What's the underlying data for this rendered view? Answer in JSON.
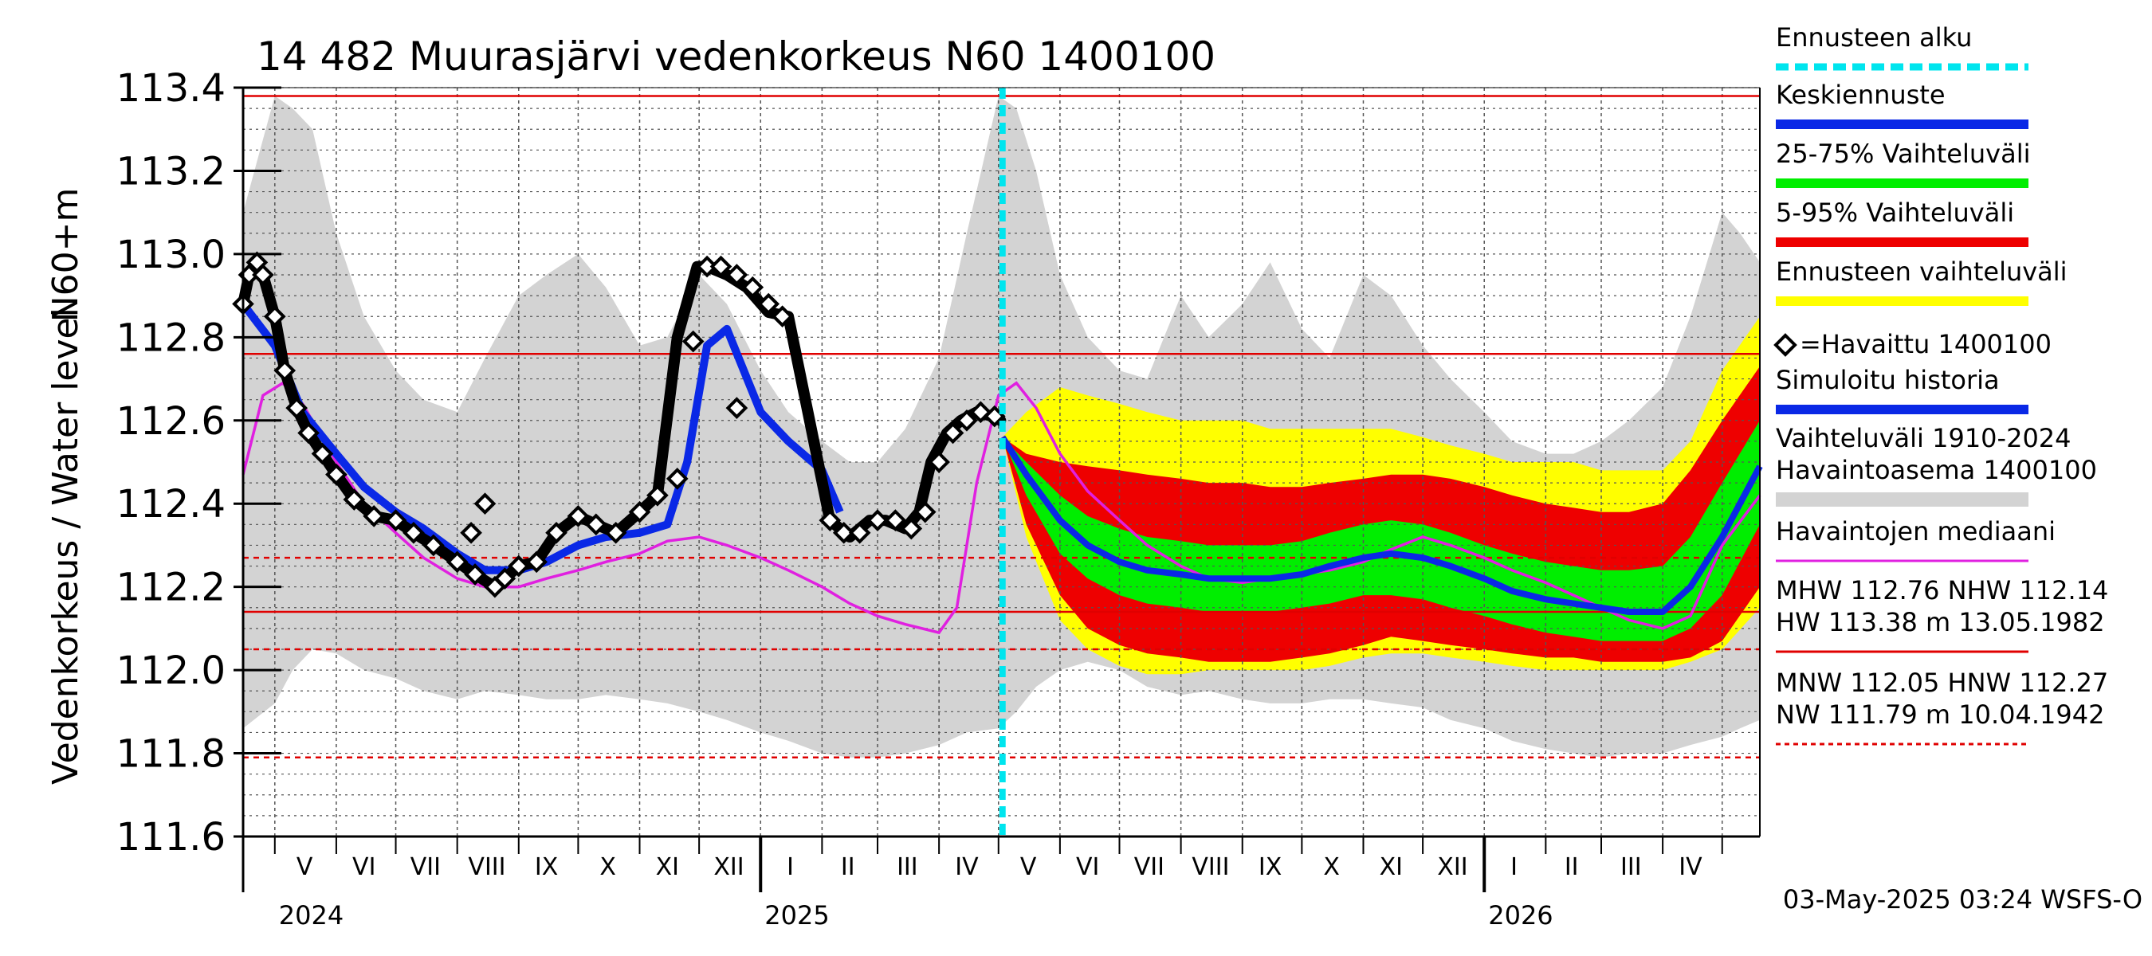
{
  "chart_data": {
    "type": "line",
    "title": "14 482 Muurasjärvi vedenkorkeus N60 1400100",
    "ylabel_top": "N60+m",
    "ylabel_main": "Vedenkorkeus / Water level",
    "ylim": [
      111.6,
      113.4
    ],
    "yticks": [
      "111.6",
      "111.8",
      "112.0",
      "112.2",
      "112.4",
      "112.6",
      "112.8",
      "113.0",
      "113.2",
      "113.4"
    ],
    "x_start": "2024-04-15",
    "x_end": "2026-05-20",
    "forecast_start": "2025-05-03",
    "months": [
      {
        "label": "V",
        "date": "2024-05-16"
      },
      {
        "label": "VI",
        "date": "2024-06-15"
      },
      {
        "label": "VII",
        "date": "2024-07-16"
      },
      {
        "label": "VIII",
        "date": "2024-08-16"
      },
      {
        "label": "IX",
        "date": "2024-09-15"
      },
      {
        "label": "X",
        "date": "2024-10-16"
      },
      {
        "label": "XI",
        "date": "2024-11-15"
      },
      {
        "label": "XII",
        "date": "2024-12-16"
      },
      {
        "label": "I",
        "date": "2025-01-16"
      },
      {
        "label": "II",
        "date": "2025-02-14"
      },
      {
        "label": "III",
        "date": "2025-03-16"
      },
      {
        "label": "IV",
        "date": "2025-04-15"
      },
      {
        "label": "V",
        "date": "2025-05-16"
      },
      {
        "label": "VI",
        "date": "2025-06-15"
      },
      {
        "label": "VII",
        "date": "2025-07-16"
      },
      {
        "label": "VIII",
        "date": "2025-08-16"
      },
      {
        "label": "IX",
        "date": "2025-09-15"
      },
      {
        "label": "X",
        "date": "2025-10-16"
      },
      {
        "label": "XI",
        "date": "2025-11-15"
      },
      {
        "label": "XII",
        "date": "2025-12-16"
      },
      {
        "label": "I",
        "date": "2026-01-16"
      },
      {
        "label": "II",
        "date": "2026-02-14"
      },
      {
        "label": "III",
        "date": "2026-03-16"
      },
      {
        "label": "IV",
        "date": "2026-04-15"
      }
    ],
    "years": [
      {
        "label": "2024",
        "date": "2024-05-01"
      },
      {
        "label": "2025",
        "date": "2025-01-01"
      },
      {
        "label": "2026",
        "date": "2026-01-01"
      }
    ],
    "reference_lines": [
      {
        "name": "HW",
        "value": 113.38,
        "style": "solid"
      },
      {
        "name": "MHW",
        "value": 112.76,
        "style": "solid"
      },
      {
        "name": "HNW",
        "value": 112.27,
        "style": "dashed"
      },
      {
        "name": "NHW",
        "value": 112.14,
        "style": "solid"
      },
      {
        "name": "MNW",
        "value": 112.05,
        "style": "dashed"
      },
      {
        "name": "NW",
        "value": 111.79,
        "style": "dashed"
      }
    ],
    "historical_range": {
      "x": [
        "2024-04-15",
        "2024-05-01",
        "2024-05-10",
        "2024-05-20",
        "2024-06-01",
        "2024-06-15",
        "2024-07-01",
        "2024-07-15",
        "2024-08-01",
        "2024-08-15",
        "2024-09-01",
        "2024-09-15",
        "2024-10-01",
        "2024-10-15",
        "2024-11-01",
        "2024-11-15",
        "2024-12-01",
        "2024-12-15",
        "2025-01-01",
        "2025-01-15",
        "2025-02-01",
        "2025-02-15",
        "2025-03-01",
        "2025-03-15",
        "2025-04-01",
        "2025-04-15",
        "2025-05-01",
        "2025-05-10",
        "2025-05-20",
        "2025-06-01",
        "2025-06-15",
        "2025-07-01",
        "2025-07-15",
        "2025-08-01",
        "2025-08-15",
        "2025-09-01",
        "2025-09-15",
        "2025-10-01",
        "2025-10-15",
        "2025-11-01",
        "2025-11-15",
        "2025-12-01",
        "2025-12-15",
        "2026-01-01",
        "2026-01-15",
        "2026-02-01",
        "2026-02-15",
        "2026-03-01",
        "2026-03-15",
        "2026-04-01",
        "2026-04-15",
        "2026-05-01",
        "2026-05-10",
        "2026-05-20"
      ],
      "upper": [
        113.1,
        113.38,
        113.35,
        113.3,
        113.05,
        112.85,
        112.72,
        112.65,
        112.62,
        112.75,
        112.9,
        112.95,
        113.0,
        112.92,
        112.78,
        112.8,
        112.95,
        112.88,
        112.72,
        112.62,
        112.55,
        112.5,
        112.5,
        112.58,
        112.75,
        113.05,
        113.38,
        113.35,
        113.2,
        112.95,
        112.8,
        112.72,
        112.7,
        112.9,
        112.8,
        112.88,
        112.98,
        112.82,
        112.75,
        112.95,
        112.9,
        112.78,
        112.7,
        112.62,
        112.55,
        112.52,
        112.52,
        112.55,
        112.6,
        112.68,
        112.85,
        113.1,
        113.05,
        112.98
      ],
      "lower": [
        111.86,
        111.92,
        112.0,
        112.05,
        112.04,
        112.0,
        111.98,
        111.95,
        111.93,
        111.95,
        111.94,
        111.93,
        111.93,
        111.94,
        111.93,
        111.92,
        111.9,
        111.88,
        111.85,
        111.83,
        111.8,
        111.79,
        111.79,
        111.8,
        111.82,
        111.85,
        111.86,
        111.9,
        111.96,
        112.0,
        112.02,
        112.0,
        111.96,
        111.94,
        111.95,
        111.93,
        111.92,
        111.92,
        111.93,
        111.93,
        111.92,
        111.91,
        111.88,
        111.86,
        111.83,
        111.81,
        111.8,
        111.79,
        111.8,
        111.8,
        111.82,
        111.84,
        111.86,
        111.88
      ]
    },
    "observed": {
      "x": [
        "2024-04-15",
        "2024-04-18",
        "2024-04-22",
        "2024-04-25",
        "2024-05-01",
        "2024-05-06",
        "2024-05-12",
        "2024-05-18",
        "2024-05-25",
        "2024-06-01",
        "2024-06-10",
        "2024-06-20",
        "2024-07-01",
        "2024-07-10",
        "2024-07-20",
        "2024-08-01",
        "2024-08-10",
        "2024-08-20",
        "2024-09-01",
        "2024-09-10",
        "2024-09-20",
        "2024-10-01",
        "2024-10-10",
        "2024-10-20",
        "2024-11-01",
        "2024-11-10",
        "2024-11-20",
        "2024-11-30",
        "2024-12-05",
        "2024-12-15",
        "2024-12-25",
        "2025-01-05",
        "2025-01-15",
        "2025-02-05",
        "2025-02-15",
        "2025-02-25",
        "2025-03-05",
        "2025-03-15",
        "2025-03-22",
        "2025-03-28",
        "2025-04-05",
        "2025-04-12",
        "2025-04-20",
        "2025-04-28",
        "2025-05-02"
      ],
      "y": [
        112.88,
        112.95,
        112.98,
        112.95,
        112.85,
        112.72,
        112.63,
        112.57,
        112.52,
        112.47,
        112.41,
        112.37,
        112.36,
        112.33,
        112.3,
        112.26,
        112.23,
        112.2,
        112.25,
        112.26,
        112.33,
        112.37,
        112.35,
        112.33,
        112.38,
        112.42,
        112.8,
        112.97,
        112.97,
        112.95,
        112.92,
        112.86,
        112.85,
        112.36,
        112.32,
        112.36,
        112.36,
        112.34,
        112.38,
        112.5,
        112.57,
        112.6,
        112.62,
        112.61,
        112.6
      ],
      "markers_x": [
        "2024-04-15",
        "2024-04-18",
        "2024-04-22",
        "2024-04-25",
        "2024-05-01",
        "2024-05-06",
        "2024-05-12",
        "2024-05-18",
        "2024-05-25",
        "2024-06-01",
        "2024-06-10",
        "2024-06-20",
        "2024-07-01",
        "2024-07-10",
        "2024-07-20",
        "2024-08-01",
        "2024-08-10",
        "2024-08-20",
        "2024-09-01",
        "2024-09-10",
        "2024-09-20",
        "2024-10-01",
        "2024-10-10",
        "2024-10-20",
        "2024-11-01",
        "2024-11-10",
        "2024-11-20",
        "2024-11-28",
        "2024-12-05",
        "2024-12-12",
        "2024-12-20",
        "2024-12-28",
        "2025-01-05",
        "2025-01-12",
        "2025-02-05",
        "2025-02-12",
        "2025-02-20",
        "2025-03-01",
        "2025-03-10",
        "2025-03-18",
        "2025-03-25",
        "2025-04-01",
        "2025-04-08",
        "2025-04-15",
        "2025-04-22",
        "2025-04-29",
        "2024-08-08",
        "2024-08-15",
        "2024-08-25",
        "2024-12-20"
      ],
      "markers_y": [
        112.88,
        112.95,
        112.98,
        112.95,
        112.85,
        112.72,
        112.63,
        112.57,
        112.52,
        112.47,
        112.41,
        112.37,
        112.36,
        112.33,
        112.3,
        112.26,
        112.23,
        112.2,
        112.25,
        112.26,
        112.33,
        112.37,
        112.35,
        112.33,
        112.38,
        112.42,
        112.46,
        112.79,
        112.97,
        112.97,
        112.95,
        112.92,
        112.88,
        112.85,
        112.36,
        112.33,
        112.33,
        112.36,
        112.36,
        112.34,
        112.38,
        112.5,
        112.57,
        112.6,
        112.62,
        112.61,
        112.33,
        112.4,
        112.22,
        112.63
      ]
    },
    "simulated_history": {
      "x": [
        "2024-04-15",
        "2024-05-01",
        "2024-05-15",
        "2024-06-01",
        "2024-06-15",
        "2024-07-01",
        "2024-07-15",
        "2024-08-01",
        "2024-08-15",
        "2024-09-01",
        "2024-09-15",
        "2024-10-01",
        "2024-10-15",
        "2024-11-01",
        "2024-11-15",
        "2024-11-25",
        "2024-12-05",
        "2024-12-15",
        "2025-01-01",
        "2025-01-15",
        "2025-02-01",
        "2025-02-10"
      ],
      "y": [
        112.88,
        112.78,
        112.62,
        112.52,
        112.44,
        112.38,
        112.34,
        112.28,
        112.24,
        112.24,
        112.26,
        112.3,
        112.32,
        112.33,
        112.35,
        112.5,
        112.78,
        112.82,
        112.62,
        112.55,
        112.48,
        112.38
      ]
    },
    "median": {
      "x": [
        "2024-04-15",
        "2024-04-25",
        "2024-05-05",
        "2024-05-15",
        "2024-06-01",
        "2024-06-15",
        "2024-07-01",
        "2024-07-15",
        "2024-08-01",
        "2024-08-15",
        "2024-09-01",
        "2024-09-15",
        "2024-10-01",
        "2024-10-15",
        "2024-11-01",
        "2024-11-15",
        "2024-12-01",
        "2024-12-15",
        "2025-01-01",
        "2025-01-15",
        "2025-02-01",
        "2025-02-15",
        "2025-03-01",
        "2025-03-15",
        "2025-04-01",
        "2025-04-10",
        "2025-04-20",
        "2025-05-01",
        "2025-05-10",
        "2025-05-20",
        "2025-06-01",
        "2025-06-15",
        "2025-07-01",
        "2025-07-15",
        "2025-08-01",
        "2025-08-15",
        "2025-09-01",
        "2025-09-15",
        "2025-10-01",
        "2025-10-15",
        "2025-11-01",
        "2025-11-15",
        "2025-12-01",
        "2025-12-15",
        "2026-01-01",
        "2026-01-15",
        "2026-02-01",
        "2026-02-15",
        "2026-03-01",
        "2026-03-15",
        "2026-04-01",
        "2026-04-15",
        "2026-05-01",
        "2026-05-20"
      ],
      "y": [
        112.47,
        112.66,
        112.69,
        112.64,
        112.5,
        112.4,
        112.33,
        112.27,
        112.22,
        112.2,
        112.2,
        112.22,
        112.24,
        112.26,
        112.28,
        112.31,
        112.32,
        112.3,
        112.27,
        112.24,
        112.2,
        112.16,
        112.13,
        112.11,
        112.09,
        112.15,
        112.45,
        112.66,
        112.69,
        112.63,
        112.52,
        112.43,
        112.36,
        112.3,
        112.25,
        112.22,
        112.21,
        112.22,
        112.23,
        112.24,
        112.26,
        112.29,
        112.32,
        112.3,
        112.27,
        112.24,
        112.21,
        112.18,
        112.15,
        112.12,
        112.1,
        112.13,
        112.3,
        112.42
      ]
    },
    "forecast": {
      "x": [
        "2025-05-03",
        "2025-05-15",
        "2025-06-01",
        "2025-06-15",
        "2025-07-01",
        "2025-07-15",
        "2025-08-01",
        "2025-08-15",
        "2025-09-01",
        "2025-09-15",
        "2025-10-01",
        "2025-10-15",
        "2025-11-01",
        "2025-11-15",
        "2025-12-01",
        "2025-12-15",
        "2026-01-01",
        "2026-01-15",
        "2026-02-01",
        "2026-02-15",
        "2026-03-01",
        "2026-03-15",
        "2026-04-01",
        "2026-04-15",
        "2026-05-01",
        "2026-05-20"
      ],
      "median": [
        112.56,
        112.47,
        112.36,
        112.3,
        112.26,
        112.24,
        112.23,
        112.22,
        112.22,
        112.22,
        112.23,
        112.25,
        112.27,
        112.28,
        112.27,
        112.25,
        112.22,
        112.19,
        112.17,
        112.16,
        112.15,
        112.14,
        112.14,
        112.2,
        112.32,
        112.49
      ],
      "p25": [
        112.56,
        112.42,
        112.28,
        112.22,
        112.18,
        112.16,
        112.15,
        112.14,
        112.14,
        112.14,
        112.15,
        112.16,
        112.18,
        112.18,
        112.17,
        112.15,
        112.13,
        112.11,
        112.09,
        112.08,
        112.07,
        112.07,
        112.07,
        112.1,
        112.18,
        112.35
      ],
      "p75": [
        112.56,
        112.5,
        112.42,
        112.37,
        112.34,
        112.32,
        112.31,
        112.3,
        112.3,
        112.3,
        112.31,
        112.33,
        112.35,
        112.36,
        112.35,
        112.33,
        112.3,
        112.28,
        112.26,
        112.25,
        112.24,
        112.24,
        112.25,
        112.32,
        112.45,
        112.6
      ],
      "p5": [
        112.56,
        112.35,
        112.18,
        112.1,
        112.06,
        112.04,
        112.03,
        112.02,
        112.02,
        112.02,
        112.03,
        112.04,
        112.06,
        112.08,
        112.07,
        112.06,
        112.05,
        112.04,
        112.03,
        112.03,
        112.02,
        112.02,
        112.02,
        112.03,
        112.07,
        112.2
      ],
      "p95": [
        112.56,
        112.52,
        112.5,
        112.49,
        112.48,
        112.47,
        112.46,
        112.45,
        112.45,
        112.44,
        112.44,
        112.45,
        112.46,
        112.47,
        112.47,
        112.46,
        112.44,
        112.42,
        112.4,
        112.39,
        112.38,
        112.38,
        112.4,
        112.48,
        112.6,
        112.73
      ],
      "min": [
        112.56,
        112.32,
        112.12,
        112.05,
        112.01,
        111.99,
        111.99,
        112.0,
        112.0,
        112.0,
        112.0,
        112.01,
        112.03,
        112.04,
        112.04,
        112.03,
        112.02,
        112.01,
        112.0,
        112.0,
        112.0,
        112.0,
        112.0,
        112.02,
        112.05,
        112.15
      ],
      "max": [
        112.56,
        112.62,
        112.68,
        112.66,
        112.64,
        112.62,
        112.6,
        112.6,
        112.6,
        112.58,
        112.58,
        112.58,
        112.58,
        112.58,
        112.56,
        112.54,
        112.52,
        112.5,
        112.5,
        112.5,
        112.48,
        112.48,
        112.48,
        112.55,
        112.72,
        112.85
      ]
    },
    "legend": [
      {
        "label": "Ennusteen alku",
        "color": "#00e5ee",
        "kind": "dashed"
      },
      {
        "label": "Keskiennuste",
        "color": "#0a28e6",
        "kind": "line"
      },
      {
        "label": "25-75% Vaihteluväli",
        "color": "#00ee00",
        "kind": "line"
      },
      {
        "label": "5-95% Vaihteluväli",
        "color": "#ee0000",
        "kind": "line"
      },
      {
        "label": "Ennusteen vaihteluväli",
        "color": "#ffff00",
        "kind": "line"
      },
      {
        "label": "=Havaittu 1400100",
        "color": "#000000",
        "kind": "marker"
      },
      {
        "label": "Simuloitu historia",
        "color": "#0a28e6",
        "kind": "line"
      },
      {
        "label": "Vaihteluväli 1910-2024\n Havaintoasema 1400100",
        "color": "#d3d3d3",
        "kind": "line"
      },
      {
        "label": "Havaintojen mediaani",
        "color": "#e020e0",
        "kind": "thin"
      },
      {
        "label": "MHW 112.76 NHW 112.14\nHW 113.38 m 13.05.1982",
        "color": "#e00000",
        "kind": "thin"
      },
      {
        "label": "MNW 112.05 HNW 112.27\nNW 111.79 m 10.04.1942",
        "color": "#e00000",
        "kind": "dashedthin"
      }
    ],
    "footer": "03-May-2025 03:24 WSFS-O",
    "colors": {
      "grid": "#555555",
      "reference": "#e00000",
      "historical": "#d3d3d3",
      "observed": "#000000",
      "simulated": "#0a28e6",
      "median": "#e020e0",
      "forecast_start": "#00e5ee"
    }
  }
}
